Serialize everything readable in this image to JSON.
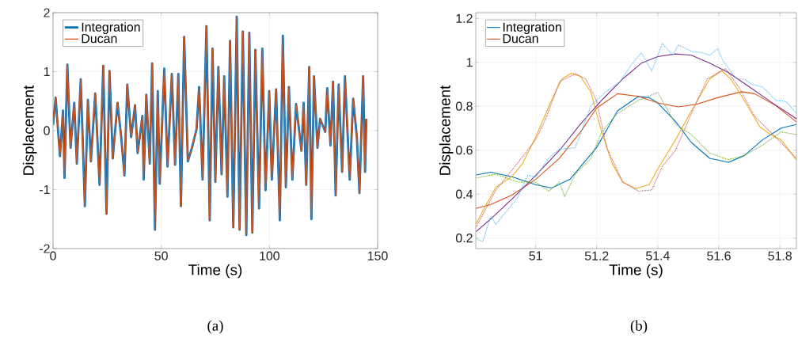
{
  "chart_data": [
    {
      "type": "line",
      "xlabel": "Time (s)",
      "ylabel": "Displacement",
      "annotations": [
        "(a)"
      ],
      "xlim": [
        0,
        150
      ],
      "ylim": [
        -2,
        2
      ],
      "xticks": [
        0,
        50,
        100,
        150
      ],
      "yticks": [
        -2,
        -1,
        0,
        1,
        2
      ],
      "grid": true,
      "legend": "top left",
      "marker": "none",
      "x": [
        0,
        1.2,
        3.2,
        4.6,
        5.3,
        6.6,
        8.1,
        9.8,
        11.0,
        12.8,
        14.7,
        16.1,
        17.5,
        19.5,
        21.5,
        23.2,
        24.7,
        26.1,
        27.6,
        29.8,
        31.5,
        33.0,
        34.3,
        36.1,
        37.9,
        39.1,
        41.3,
        41.9,
        43.1,
        44.7,
        45.8,
        47.1,
        48.4,
        49.3,
        51.4,
        52.9,
        54.9,
        56.4,
        57.9,
        59.1,
        60.6,
        62.3,
        64.2,
        66.3,
        67.5,
        69.1,
        70.9,
        72.4,
        73.7,
        75.0,
        76.4,
        77.9,
        79.1,
        80.6,
        81.8,
        83.3,
        84.9,
        86.2,
        87.7,
        89.3,
        90.7,
        92.1,
        93.5,
        95.2,
        96.7,
        98.2,
        99.9,
        101.1,
        103.1,
        104.8,
        106.2,
        107.6,
        109.0,
        110.6,
        112.3,
        114.8,
        115.8,
        117.0,
        118.4,
        119.4,
        120.6,
        122.2,
        123.4,
        125.8,
        126.7,
        128.2,
        129.4,
        130.6,
        132.0,
        133.6,
        134.9,
        137.1,
        138.7,
        140.4,
        141.6,
        143.3,
        144.2,
        144.8
      ],
      "series": [
        {
          "name": "Integration",
          "color": "#0072bd",
          "line_style": "solid",
          "values": [
            0.1,
            0.56,
            -0.43,
            0.34,
            -0.8,
            1.12,
            -0.29,
            0.47,
            -0.56,
            0.87,
            -1.28,
            0.52,
            -0.52,
            0.63,
            -0.92,
            1.1,
            -1.41,
            1.01,
            -0.47,
            0.47,
            -0.11,
            -0.76,
            0.78,
            -0.11,
            0.43,
            -0.38,
            0.25,
            -0.83,
            0.61,
            -0.56,
            1.14,
            -1.68,
            0.67,
            -0.9,
            1.05,
            -0.61,
            0.96,
            -0.58,
            0.96,
            -1.28,
            1.59,
            -0.52,
            -0.29,
            0.02,
            0.74,
            -0.83,
            1.77,
            -1.52,
            1.39,
            -0.87,
            1.08,
            -0.74,
            0.92,
            -1.12,
            1.52,
            -1.64,
            1.93,
            -1.68,
            1.68,
            -1.77,
            1.66,
            -1.73,
            1.37,
            -1.32,
            1.39,
            -1.01,
            0.67,
            -0.83,
            0.7,
            -1.52,
            1.61,
            -0.96,
            0.74,
            -0.83,
            0.45,
            -0.34,
            0.47,
            -0.92,
            1.08,
            -1.5,
            0.92,
            -0.29,
            0.2,
            -0.02,
            0.72,
            -0.25,
            0.83,
            -1.1,
            0.78,
            -0.7,
            0.92,
            -0.83,
            0.54,
            -0.11,
            -1.06,
            0.92,
            -0.7,
            0.2
          ]
        },
        {
          "name": "Ducan",
          "color": "#d95319",
          "line_style": "solid",
          "values": [
            0.1,
            0.56,
            -0.43,
            0.34,
            -0.8,
            1.12,
            -0.29,
            0.47,
            -0.56,
            0.87,
            -1.28,
            0.52,
            -0.52,
            0.63,
            -0.92,
            1.1,
            -1.41,
            1.01,
            -0.47,
            0.47,
            -0.11,
            -0.76,
            0.78,
            -0.11,
            0.43,
            -0.38,
            0.25,
            -0.83,
            0.61,
            -0.56,
            1.14,
            -1.68,
            0.67,
            -0.9,
            1.05,
            -0.61,
            0.96,
            -0.58,
            0.96,
            -1.28,
            1.59,
            -0.52,
            -0.29,
            0.02,
            0.74,
            -0.83,
            1.77,
            -1.52,
            1.39,
            -0.87,
            1.08,
            -0.74,
            0.92,
            -1.12,
            1.52,
            -1.64,
            1.93,
            -1.68,
            1.68,
            -1.77,
            1.66,
            -1.73,
            1.37,
            -1.32,
            1.39,
            -1.01,
            0.67,
            -0.83,
            0.7,
            -1.52,
            1.61,
            -0.96,
            0.74,
            -0.83,
            0.45,
            -0.34,
            0.47,
            -0.92,
            1.08,
            -1.5,
            0.92,
            -0.29,
            0.2,
            -0.02,
            0.72,
            -0.25,
            0.83,
            -1.1,
            0.78,
            -0.7,
            0.92,
            -0.83,
            0.54,
            -0.11,
            -1.06,
            0.92,
            -0.7,
            0.2
          ]
        }
      ]
    },
    {
      "type": "line",
      "xlabel": "Time (s)",
      "ylabel": "Displacement",
      "annotations": [
        "(b)"
      ],
      "xlim": [
        50.804,
        51.854
      ],
      "ylim": [
        0.152,
        1.226
      ],
      "xticks": [
        51,
        51.2,
        51.4,
        51.6,
        51.8
      ],
      "yticks": [
        0.2,
        0.4,
        0.6,
        0.8,
        1,
        1.2
      ],
      "grid": true,
      "legend": "top left",
      "marker": "none",
      "series": [
        {
          "name": "Integration",
          "color": "#0072bd",
          "line_style": "solid",
          "x": [
            50.805,
            50.853,
            50.922,
            51.0,
            51.052,
            51.112,
            51.199,
            51.268,
            51.337,
            51.372,
            51.4,
            51.458,
            51.51,
            51.57,
            51.631,
            51.683,
            51.743,
            51.804,
            51.854
          ],
          "values": [
            0.487,
            0.5,
            0.479,
            0.443,
            0.428,
            0.467,
            0.611,
            0.779,
            0.845,
            0.839,
            0.815,
            0.731,
            0.635,
            0.563,
            0.545,
            0.575,
            0.647,
            0.701,
            0.717
          ]
        },
        {
          "name": "Ducan",
          "color": "#d95319",
          "line_style": "solid",
          "x": [
            50.805,
            50.853,
            50.922,
            51.0,
            51.078,
            51.147,
            51.199,
            51.268,
            51.337,
            51.4,
            51.467,
            51.527,
            51.596,
            51.674,
            51.717,
            51.786,
            51.854
          ],
          "values": [
            0.335,
            0.353,
            0.395,
            0.467,
            0.563,
            0.683,
            0.791,
            0.857,
            0.845,
            0.815,
            0.797,
            0.809,
            0.839,
            0.866,
            0.857,
            0.803,
            0.729
          ]
        },
        {
          "color": "#edb120",
          "line_style": "solid",
          "x": [
            50.805,
            50.836,
            50.87,
            50.922,
            50.957,
            51.0,
            51.052,
            51.086,
            51.117,
            51.147,
            51.181,
            51.216,
            51.251,
            51.285,
            51.328,
            51.372,
            51.4,
            51.458,
            51.51,
            51.57,
            51.609,
            51.639,
            51.683,
            51.734,
            51.769,
            51.804,
            51.854
          ],
          "values": [
            0.265,
            0.347,
            0.431,
            0.479,
            0.539,
            0.659,
            0.827,
            0.924,
            0.95,
            0.936,
            0.863,
            0.683,
            0.539,
            0.455,
            0.425,
            0.443,
            0.515,
            0.647,
            0.779,
            0.924,
            0.962,
            0.924,
            0.827,
            0.707,
            0.671,
            0.647,
            0.555
          ]
        },
        {
          "color": "#7e2f8e",
          "line_style": "solid",
          "x": [
            50.805,
            50.853,
            50.922,
            51.0,
            51.078,
            51.147,
            51.216,
            51.285,
            51.346,
            51.4,
            51.458,
            51.51,
            51.57,
            51.631,
            51.7,
            51.769,
            51.854
          ],
          "values": [
            0.229,
            0.287,
            0.377,
            0.485,
            0.599,
            0.719,
            0.827,
            0.924,
            0.996,
            1.026,
            1.038,
            1.032,
            0.996,
            0.954,
            0.888,
            0.821,
            0.743
          ]
        },
        {
          "color": "#4dbeee",
          "line_style": "dotted",
          "x": [
            50.805,
            50.827,
            50.853,
            50.87,
            50.905,
            50.94,
            50.974,
            51.0,
            51.043,
            51.078,
            51.13,
            51.181,
            51.233,
            51.276,
            51.311,
            51.346,
            51.38,
            51.415,
            51.449,
            51.467,
            51.51,
            51.544,
            51.57,
            51.596,
            51.613,
            51.657,
            51.683,
            51.708,
            51.743,
            51.786,
            51.821,
            51.854
          ],
          "values": [
            0.196,
            0.184,
            0.299,
            0.263,
            0.323,
            0.383,
            0.485,
            0.479,
            0.563,
            0.605,
            0.611,
            0.803,
            0.869,
            0.912,
            0.984,
            1.044,
            0.96,
            1.086,
            1.032,
            1.08,
            1.05,
            1.044,
            1.032,
            1.062,
            1.008,
            0.924,
            0.924,
            0.9,
            0.888,
            0.827,
            0.821,
            0.767
          ]
        },
        {
          "color": "#77ac30",
          "line_style": "dotted",
          "x": [
            50.805,
            50.87,
            50.94,
            51.0,
            51.043,
            51.078,
            51.095,
            51.13,
            51.181,
            51.216,
            51.268,
            51.337,
            51.4,
            51.458,
            51.51,
            51.57,
            51.631,
            51.683,
            51.743,
            51.804,
            51.854
          ],
          "values": [
            0.473,
            0.491,
            0.455,
            0.455,
            0.413,
            0.455,
            0.389,
            0.491,
            0.563,
            0.683,
            0.767,
            0.827,
            0.863,
            0.719,
            0.671,
            0.587,
            0.557,
            0.575,
            0.623,
            0.683,
            0.671
          ]
        },
        {
          "color": "#d0506a",
          "line_style": "dotted",
          "x": [
            50.805,
            50.87,
            50.94,
            51.0,
            51.035,
            51.078,
            51.13,
            51.164,
            51.199,
            51.233,
            51.285,
            51.337,
            51.38,
            51.415,
            51.458,
            51.51,
            51.562,
            51.622,
            51.665,
            51.717,
            51.786,
            51.854
          ],
          "values": [
            0.25,
            0.419,
            0.539,
            0.647,
            0.749,
            0.912,
            0.948,
            0.924,
            0.827,
            0.611,
            0.455,
            0.413,
            0.419,
            0.527,
            0.599,
            0.767,
            0.924,
            0.972,
            0.888,
            0.755,
            0.659,
            0.563
          ]
        }
      ]
    }
  ]
}
